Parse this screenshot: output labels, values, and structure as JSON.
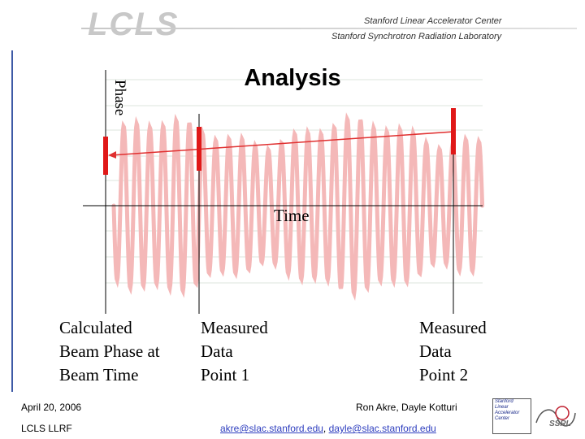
{
  "header": {
    "logo_text": "LCLS",
    "org_line1": "Stanford Linear Accelerator Center",
    "org_line2": "Stanford Synchrotron Radiation Laboratory"
  },
  "slide": {
    "title": "Analysis",
    "phase_label": "Phase",
    "time_label": "Time",
    "captions": [
      [
        "Calculated",
        "Beam Phase at",
        "Beam Time"
      ],
      [
        "Measured",
        "Data",
        "Point 1"
      ],
      [
        "Measured",
        "Data",
        "Point 2"
      ]
    ]
  },
  "footer": {
    "date": "April 20, 2006",
    "conference": "LCLS LLRF",
    "authors": "Ron Akre, Dayle Kotturi",
    "email1": "akre@slac.stanford.edu",
    "separator": ", ",
    "email2": "dayle@slac.stanford.edu",
    "slac_logo_lines": [
      "Stanford",
      "Linear",
      "Accelerator",
      "Center"
    ],
    "ssrl_logo_text": "SSRL"
  },
  "colors": {
    "accent": "#3e5aa6",
    "wave": "#f4b8b8",
    "marker": "#e01818",
    "line": "#e03030"
  }
}
